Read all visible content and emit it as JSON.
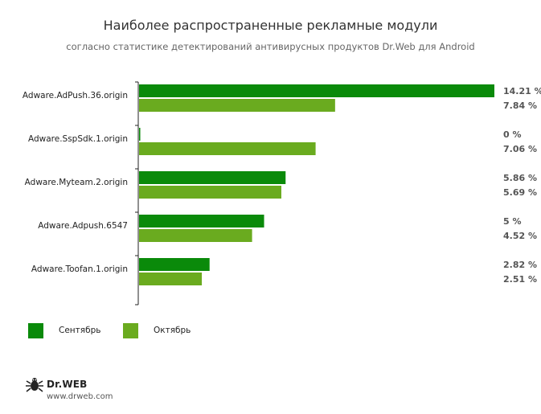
{
  "title": "Наиболее распространенные рекламные модули",
  "subtitle": "согласно статистике детектирований антивирусных продуктов Dr.Web для Android",
  "colors": {
    "series1": "#0a8a0a",
    "series2": "#6aab1f"
  },
  "chart_data": {
    "type": "bar",
    "orientation": "horizontal",
    "categories": [
      "Adware.AdPush.36.origin",
      "Adware.SspSdk.1.origin",
      "Adware.Myteam.2.origin",
      "Adware.Adpush.6547",
      "Adware.Toofan.1.origin"
    ],
    "series": [
      {
        "name": "Сентябрь",
        "values": [
          14.21,
          0,
          5.86,
          5,
          2.82
        ],
        "labels": [
          "14.21 %",
          "0 %",
          "5.86 %",
          "5 %",
          "2.82 %"
        ]
      },
      {
        "name": "Октябрь",
        "values": [
          7.84,
          7.06,
          5.69,
          4.52,
          2.51
        ],
        "labels": [
          "7.84 %",
          "7.06 %",
          "5.69 %",
          "4.52 %",
          "2.51 %"
        ]
      }
    ],
    "xlim": [
      0,
      14.21
    ],
    "grid": false,
    "legend_position": "bottom-left"
  },
  "brand": {
    "name": "Dr.WEB",
    "url": "www.drweb.com"
  }
}
